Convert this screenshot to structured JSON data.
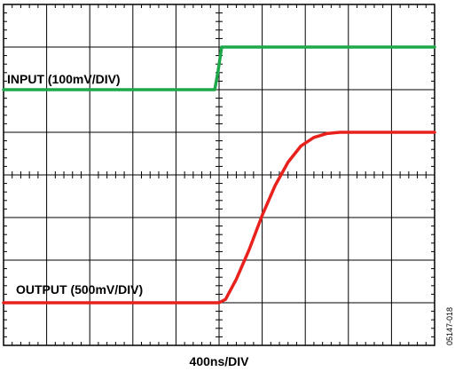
{
  "chart_data": {
    "type": "line",
    "title": "",
    "xlabel": "400ns/DIV",
    "ylabel": "",
    "x_divisions": 10,
    "y_divisions": 8,
    "x_unit_per_div": "400ns",
    "grid": true,
    "series": [
      {
        "name": "INPUT (100mV/DIV)",
        "color": "#1fa84a",
        "x_div": [
          0,
          4.9,
          4.98,
          5.06,
          10
        ],
        "y_div": [
          6.0,
          6.0,
          6.45,
          7.0,
          7.0
        ]
      },
      {
        "name": "OUTPUT (500mV/DIV)",
        "color": "#e8211d",
        "x_div": [
          0,
          5.0,
          5.15,
          5.4,
          5.7,
          6.0,
          6.3,
          6.6,
          6.9,
          7.2,
          7.5,
          7.8,
          8.1,
          10
        ],
        "y_div": [
          1.0,
          1.0,
          1.08,
          1.55,
          2.25,
          3.05,
          3.75,
          4.3,
          4.68,
          4.88,
          4.97,
          5.0,
          5.0,
          5.0
        ]
      }
    ]
  },
  "labels": {
    "input": "INPUT (100mV/DIV)",
    "output": "OUTPUT (500mV/DIV)",
    "xaxis": "400ns/DIV",
    "figure_id": "05147-018"
  }
}
